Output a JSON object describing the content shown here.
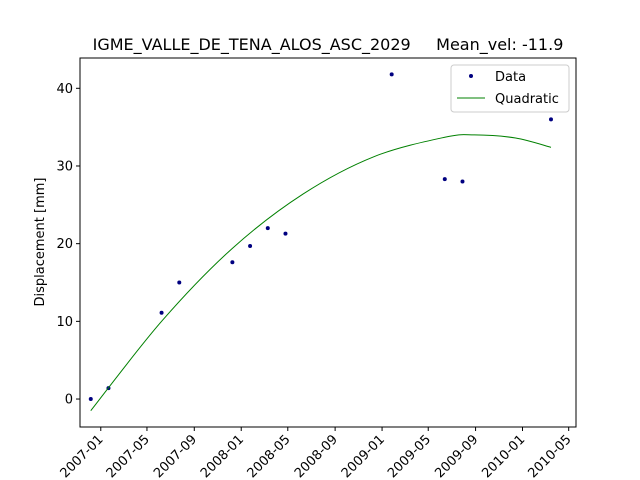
{
  "chart_data": {
    "type": "scatter",
    "title": "IGME_VALLE_DE_TENA_ALOS_ASC_2029     Mean_vel: -11.9",
    "xlabel": "",
    "ylabel": "Displacement [mm]",
    "x_ticks": [
      "2007-01",
      "2007-05",
      "2007-09",
      "2008-01",
      "2008-05",
      "2008-09",
      "2009-01",
      "2009-05",
      "2009-09",
      "2010-01",
      "2010-05"
    ],
    "y_ticks": [
      0,
      10,
      20,
      30,
      40
    ],
    "xlim": [
      "2006-11-08",
      "2010-05-20"
    ],
    "ylim": [
      -3.6,
      43.9
    ],
    "grid": false,
    "legend": {
      "placement": "top-right",
      "entries": [
        "Data",
        "Quadratic"
      ]
    },
    "series": [
      {
        "name": "Data",
        "kind": "points",
        "color": "#000080",
        "points": [
          {
            "x": "2006-12-06",
            "y": 0.0
          },
          {
            "x": "2007-01-21",
            "y": 1.4
          },
          {
            "x": "2007-06-08",
            "y": 11.1
          },
          {
            "x": "2007-07-24",
            "y": 15.0
          },
          {
            "x": "2007-12-09",
            "y": 17.6
          },
          {
            "x": "2008-01-24",
            "y": 19.7
          },
          {
            "x": "2008-03-10",
            "y": 22.0
          },
          {
            "x": "2008-04-25",
            "y": 21.3
          },
          {
            "x": "2009-01-26",
            "y": 41.8
          },
          {
            "x": "2009-06-13",
            "y": 28.3
          },
          {
            "x": "2009-07-29",
            "y": 28.0
          },
          {
            "x": "2010-03-16",
            "y": 36.0
          }
        ]
      },
      {
        "name": "Quadratic",
        "kind": "line",
        "color": "#008000",
        "points": [
          {
            "x": "2006-12-06",
            "y": -1.5
          },
          {
            "x": "2007-06-08",
            "y": 10.0
          },
          {
            "x": "2007-12-09",
            "y": 19.4
          },
          {
            "x": "2008-06-10",
            "y": 26.4
          },
          {
            "x": "2008-12-11",
            "y": 31.2
          },
          {
            "x": "2009-06-13",
            "y": 33.7
          },
          {
            "x": "2009-08-29",
            "y": 34.0
          },
          {
            "x": "2009-12-14",
            "y": 33.6
          },
          {
            "x": "2010-03-16",
            "y": 32.4
          }
        ]
      }
    ]
  }
}
